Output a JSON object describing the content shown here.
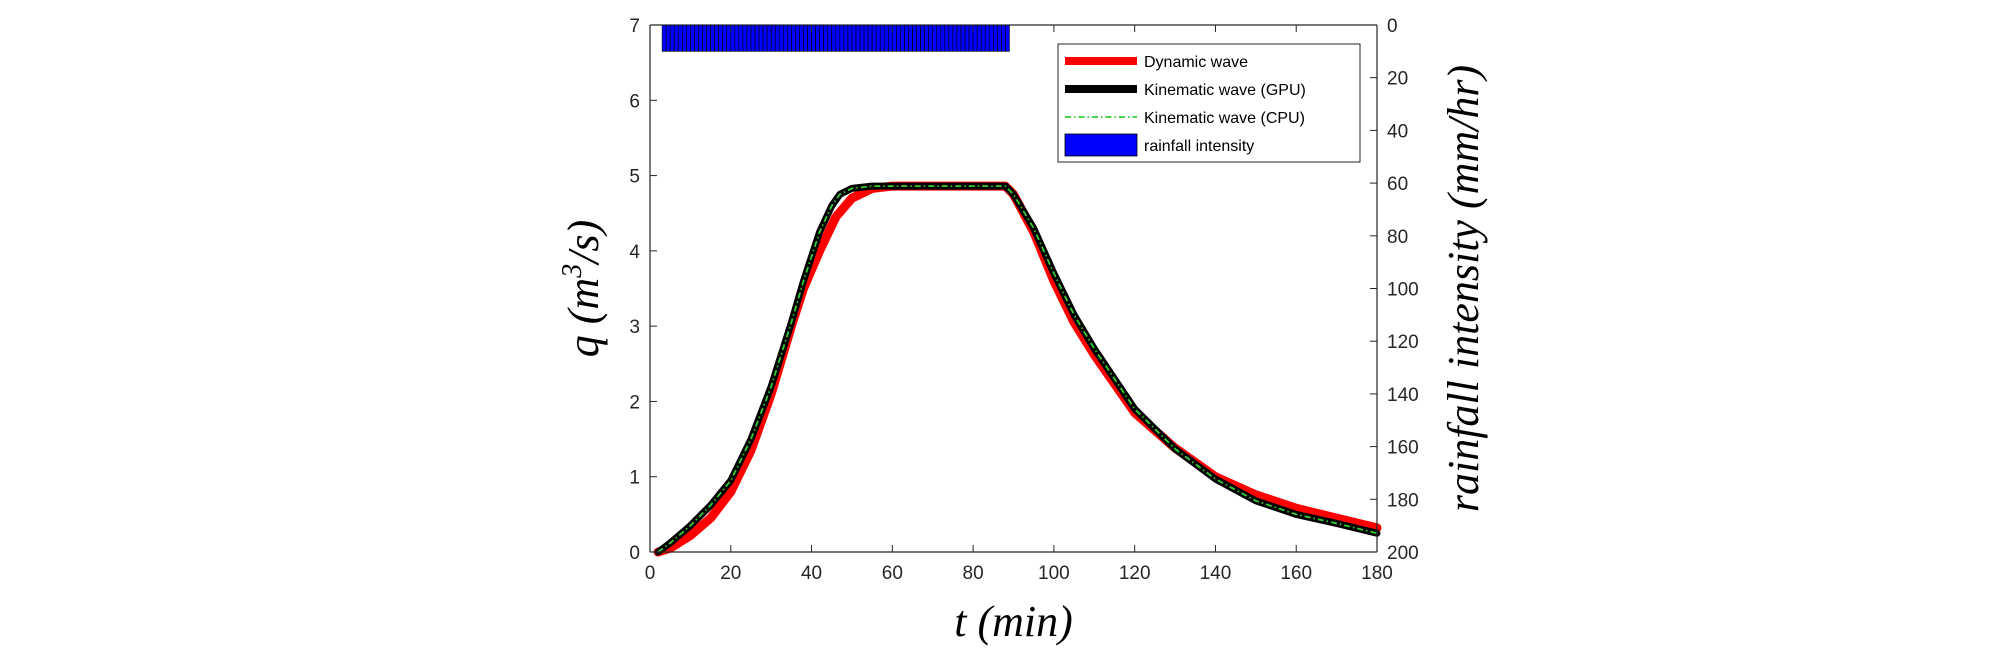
{
  "chart_data": {
    "type": "line",
    "xlabel": "t (min)",
    "ylabel_left": {
      "base": "q (m",
      "sup": "3",
      "tail": "/s)"
    },
    "ylabel_right": "rainfall intensity (mm/hr)",
    "xlim": [
      0,
      180
    ],
    "ylim_left": [
      0,
      7
    ],
    "ylim_right_reversed": [
      0,
      200
    ],
    "xticks": [
      "0",
      "20",
      "40",
      "60",
      "80",
      "100",
      "120",
      "140",
      "160",
      "180"
    ],
    "yticks_left": [
      "0",
      "1",
      "2",
      "3",
      "4",
      "5",
      "6",
      "7"
    ],
    "yticks_right": [
      "0",
      "20",
      "40",
      "60",
      "80",
      "100",
      "120",
      "140",
      "160",
      "180",
      "200"
    ],
    "legend_position": "top-right",
    "series": [
      {
        "name": "Dynamic wave",
        "color": "#ff0000",
        "style": "solid-thick",
        "x": [
          2,
          5,
          10,
          15,
          20,
          25,
          30,
          35,
          38,
          42,
          46,
          50,
          55,
          60,
          70,
          80,
          88,
          90,
          95,
          100,
          105,
          110,
          120,
          130,
          140,
          150,
          160,
          170,
          180
        ],
        "y": [
          0,
          0.05,
          0.22,
          0.45,
          0.8,
          1.35,
          2.1,
          3.0,
          3.5,
          4.0,
          4.45,
          4.7,
          4.83,
          4.86,
          4.86,
          4.86,
          4.86,
          4.75,
          4.25,
          3.6,
          3.05,
          2.62,
          1.85,
          1.38,
          1.0,
          0.76,
          0.58,
          0.45,
          0.32
        ]
      },
      {
        "name": "Kinematic wave (GPU)",
        "color": "#000000",
        "style": "solid-thick",
        "x": [
          2,
          5,
          10,
          15,
          20,
          25,
          30,
          35,
          38,
          42,
          45,
          47,
          50,
          55,
          60,
          70,
          80,
          88,
          90,
          95,
          100,
          105,
          110,
          120,
          130,
          140,
          150,
          160,
          170,
          180
        ],
        "y": [
          0,
          0.12,
          0.35,
          0.62,
          0.95,
          1.5,
          2.2,
          3.05,
          3.6,
          4.25,
          4.6,
          4.75,
          4.83,
          4.86,
          4.86,
          4.86,
          4.86,
          4.86,
          4.75,
          4.3,
          3.7,
          3.15,
          2.7,
          1.9,
          1.37,
          0.97,
          0.68,
          0.5,
          0.38,
          0.25
        ]
      },
      {
        "name": "Kinematic wave (CPU)",
        "color": "#33cc33",
        "style": "dash-dot",
        "x": [
          2,
          5,
          10,
          15,
          20,
          25,
          30,
          35,
          38,
          42,
          45,
          47,
          50,
          55,
          60,
          70,
          80,
          88,
          90,
          95,
          100,
          105,
          110,
          120,
          130,
          140,
          150,
          160,
          170,
          180
        ],
        "y": [
          0,
          0.12,
          0.35,
          0.62,
          0.95,
          1.5,
          2.2,
          3.05,
          3.6,
          4.25,
          4.6,
          4.75,
          4.83,
          4.86,
          4.86,
          4.86,
          4.86,
          4.86,
          4.75,
          4.3,
          3.7,
          3.15,
          2.7,
          1.9,
          1.37,
          0.97,
          0.68,
          0.5,
          0.38,
          0.25
        ]
      },
      {
        "name": "rainfall intensity",
        "color": "#0000ff",
        "style": "bar",
        "axis": "right",
        "x_start": 3,
        "x_end": 89,
        "bar_width": 1,
        "value": 10
      }
    ]
  }
}
